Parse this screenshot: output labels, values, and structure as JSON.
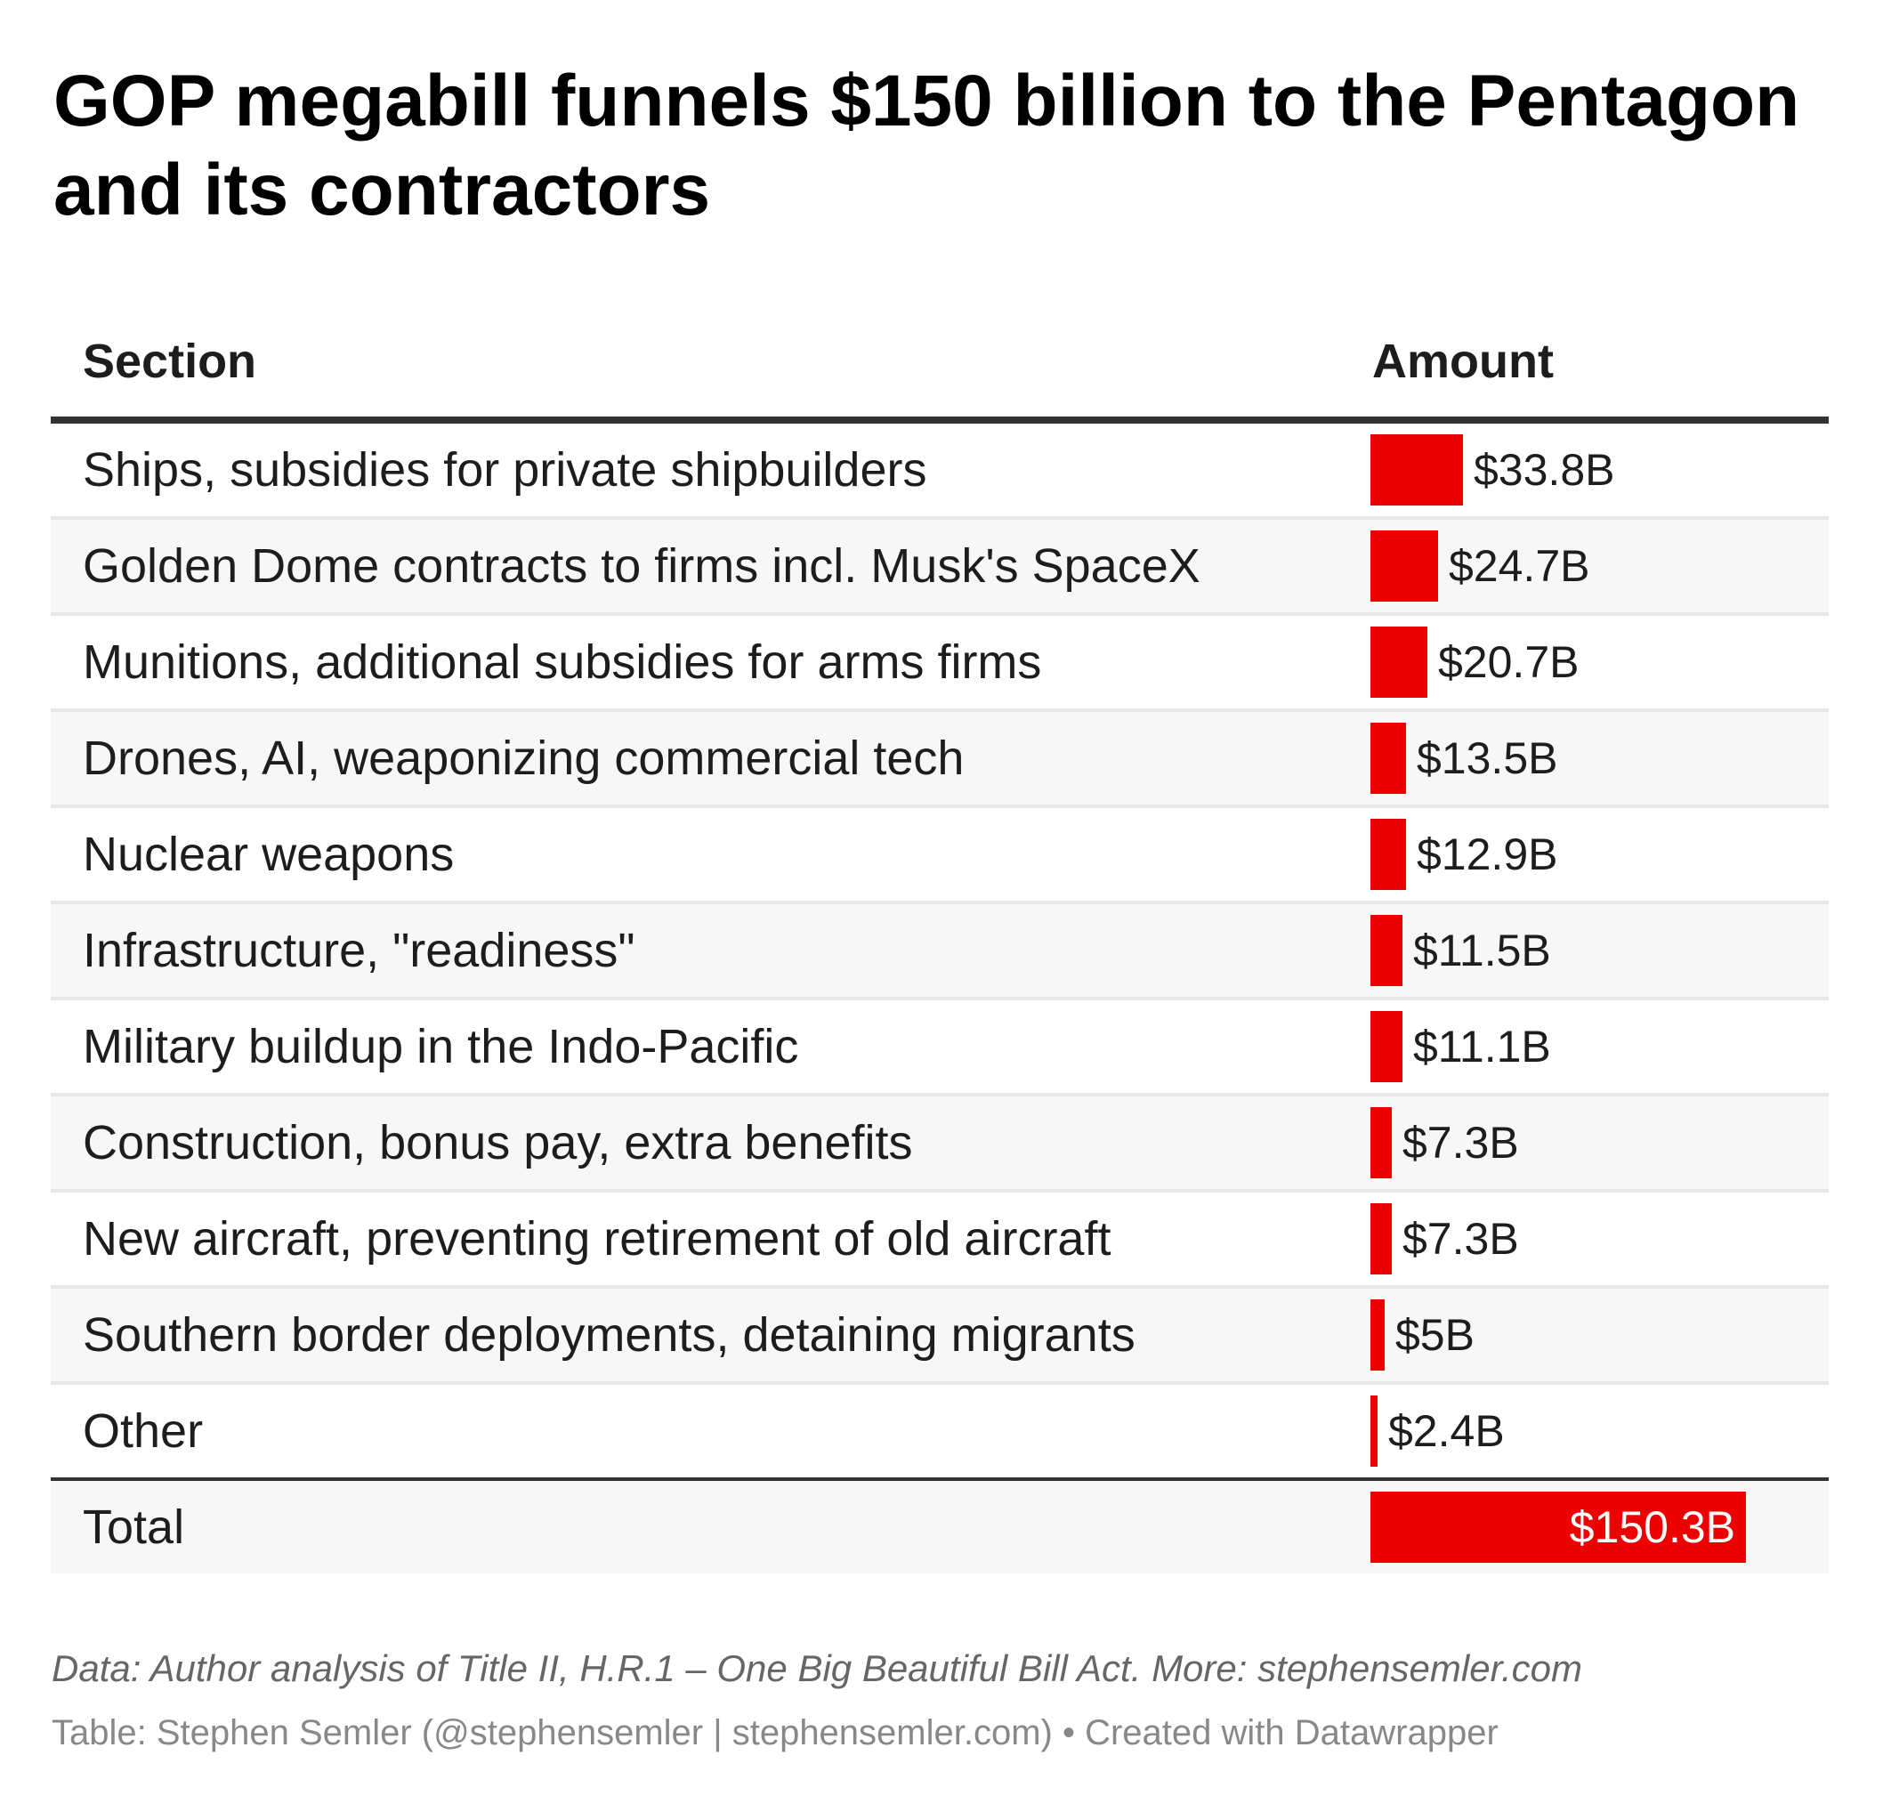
{
  "title": "GOP megabill funnels $150 billion to the Pentagon and its contractors",
  "colors": {
    "bar": "#ee0000",
    "text": "#1d1d1d",
    "header_rule": "#333333",
    "row_alt_bg": "#f7f7f7",
    "row_border": "#e6e6e6"
  },
  "columns": {
    "section": "Section",
    "amount": "Amount"
  },
  "chart_data": {
    "type": "table",
    "title": "GOP megabill funnels $150 billion to the Pentagon and its contractors",
    "columns": [
      "Section",
      "Amount"
    ],
    "unit": "billion USD",
    "rows": [
      {
        "section": "Ships, subsidies for private shipbuilders",
        "value": 33.8,
        "label": "$33.8B"
      },
      {
        "section": "Golden Dome contracts to firms incl. Musk's SpaceX",
        "value": 24.7,
        "label": "$24.7B"
      },
      {
        "section": "Munitions, additional subsidies for arms firms",
        "value": 20.7,
        "label": "$20.7B"
      },
      {
        "section": "Drones, AI, weaponizing commercial tech",
        "value": 13.5,
        "label": "$13.5B"
      },
      {
        "section": "Nuclear weapons",
        "value": 12.9,
        "label": "$12.9B"
      },
      {
        "section": "Infrastructure, \"readiness\"",
        "value": 11.5,
        "label": "$11.5B"
      },
      {
        "section": "Military buildup in the Indo-Pacific",
        "value": 11.1,
        "label": "$11.1B"
      },
      {
        "section": "Construction, bonus pay, extra benefits",
        "value": 7.3,
        "label": "$7.3B"
      },
      {
        "section": "New aircraft, preventing retirement of old aircraft",
        "value": 7.3,
        "label": "$7.3B"
      },
      {
        "section": "Southern border deployments, detaining migrants",
        "value": 5,
        "label": "$5B"
      },
      {
        "section": "Other",
        "value": 2.4,
        "label": "$2.4B"
      }
    ],
    "total": {
      "section": "Total",
      "value": 150.3,
      "label": "$150.3B"
    }
  },
  "footer": {
    "notes": "Data: Author analysis of Title II, H.R.1 – One Big Beautiful Bill Act. More: stephensemler.com",
    "byline": "Table: Stephen Semler (@stephensemler | stephensemler.com) • Created with Datawrapper"
  }
}
